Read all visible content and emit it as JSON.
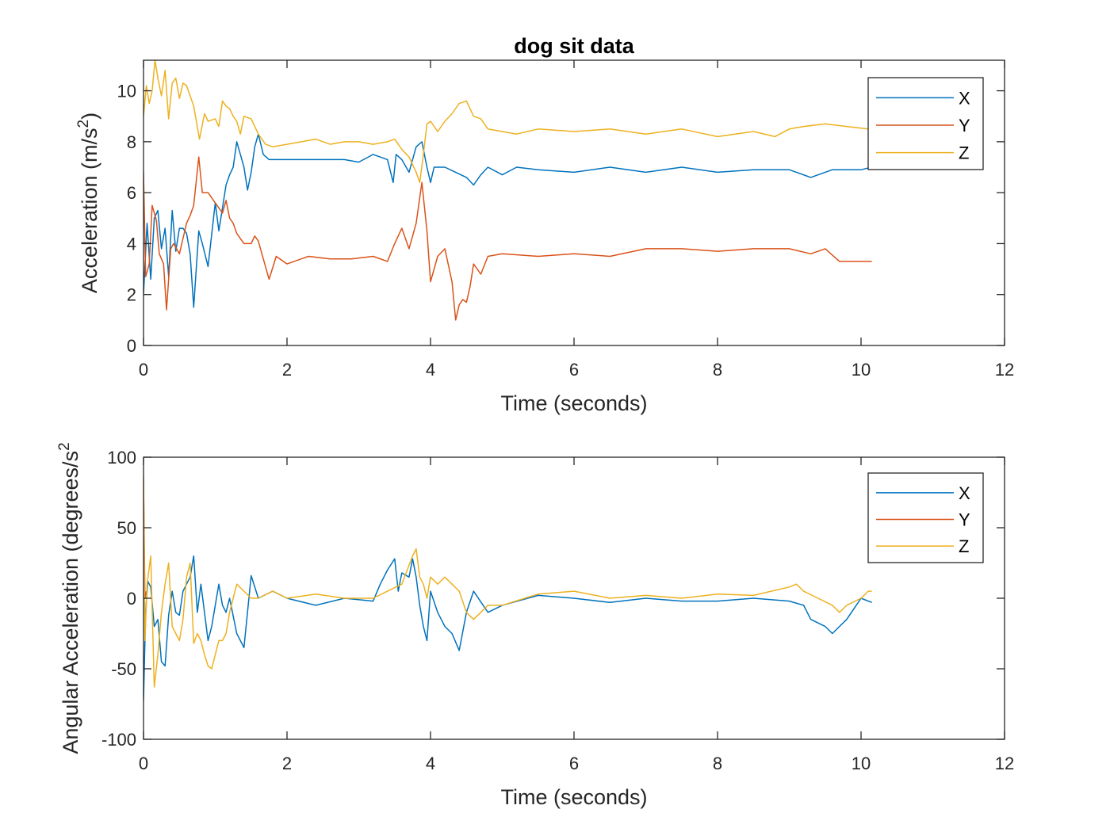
{
  "colors": {
    "X": "#0072BD",
    "Y": "#D95319",
    "Z": "#EDB120",
    "axis": "#262626"
  },
  "chart_data": [
    {
      "type": "line",
      "title": "dog sit data",
      "xlabel": "Time (seconds)",
      "ylabel": "Acceleration (m/s",
      "ylabel_sup": "2",
      "ylabel_close": ")",
      "xlim": [
        0,
        12
      ],
      "ylim": [
        0,
        11.2
      ],
      "xticks": [
        0,
        2,
        4,
        6,
        8,
        10,
        12
      ],
      "yticks": [
        0,
        2,
        4,
        6,
        8,
        10
      ],
      "grid": false,
      "legend": "top-right",
      "series": [
        {
          "name": "X",
          "x": [
            0,
            0.05,
            0.1,
            0.15,
            0.2,
            0.25,
            0.3,
            0.35,
            0.4,
            0.45,
            0.5,
            0.55,
            0.6,
            0.65,
            0.7,
            0.77,
            0.82,
            0.9,
            1.0,
            1.05,
            1.1,
            1.15,
            1.2,
            1.25,
            1.3,
            1.35,
            1.4,
            1.45,
            1.5,
            1.55,
            1.6,
            1.67,
            1.75,
            1.85,
            2.0,
            2.2,
            2.4,
            2.6,
            2.8,
            3.0,
            3.2,
            3.4,
            3.48,
            3.52,
            3.6,
            3.7,
            3.8,
            3.88,
            3.95,
            4.0,
            4.05,
            4.2,
            4.35,
            4.5,
            4.6,
            4.7,
            4.8,
            5.0,
            5.2,
            5.5,
            6.0,
            6.5,
            7.0,
            7.5,
            8.0,
            8.5,
            9.0,
            9.3,
            9.6,
            10.0,
            10.15
          ],
          "y": [
            2.0,
            4.8,
            2.6,
            5.0,
            5.3,
            3.8,
            4.6,
            2.7,
            5.3,
            3.7,
            4.6,
            4.6,
            4.4,
            3.6,
            1.5,
            4.5,
            4.0,
            3.1,
            5.6,
            4.5,
            5.4,
            6.3,
            6.7,
            7.0,
            8.0,
            7.5,
            7.0,
            6.1,
            6.8,
            7.8,
            8.3,
            7.5,
            7.3,
            7.3,
            7.3,
            7.3,
            7.3,
            7.3,
            7.3,
            7.2,
            7.5,
            7.3,
            6.4,
            7.5,
            7.3,
            6.8,
            7.8,
            8.0,
            7.0,
            6.4,
            7.0,
            7.0,
            6.8,
            6.6,
            6.3,
            6.7,
            7.0,
            6.7,
            7.0,
            6.9,
            6.8,
            7.0,
            6.8,
            7.0,
            6.8,
            6.9,
            6.9,
            6.6,
            6.9,
            6.9,
            7.0
          ]
        },
        {
          "name": "Y",
          "x": [
            0,
            0.03,
            0.08,
            0.12,
            0.18,
            0.22,
            0.28,
            0.32,
            0.38,
            0.42,
            0.5,
            0.55,
            0.6,
            0.65,
            0.7,
            0.77,
            0.82,
            0.9,
            1.0,
            1.05,
            1.1,
            1.15,
            1.2,
            1.25,
            1.3,
            1.4,
            1.5,
            1.55,
            1.6,
            1.67,
            1.75,
            1.85,
            2.0,
            2.3,
            2.6,
            2.9,
            3.2,
            3.4,
            3.5,
            3.6,
            3.7,
            3.8,
            3.88,
            3.95,
            4.0,
            4.1,
            4.2,
            4.3,
            4.35,
            4.4,
            4.45,
            4.5,
            4.55,
            4.6,
            4.7,
            4.8,
            5.0,
            5.5,
            6.0,
            6.5,
            7.0,
            7.5,
            8.0,
            8.5,
            9.0,
            9.3,
            9.5,
            9.7,
            10.0,
            10.15
          ],
          "y": [
            6.8,
            2.7,
            3.2,
            5.5,
            4.9,
            3.6,
            3.2,
            1.4,
            3.8,
            4.0,
            3.6,
            4.2,
            4.8,
            5.1,
            5.5,
            7.4,
            6.0,
            6.0,
            5.6,
            5.4,
            5.2,
            5.7,
            5.0,
            4.8,
            4.4,
            4.0,
            4.0,
            4.3,
            4.1,
            3.4,
            2.6,
            3.5,
            3.2,
            3.5,
            3.4,
            3.4,
            3.5,
            3.3,
            4.0,
            4.6,
            3.8,
            4.8,
            6.4,
            4.5,
            2.5,
            3.5,
            3.8,
            2.5,
            1.0,
            1.6,
            1.8,
            1.7,
            2.3,
            3.2,
            2.8,
            3.5,
            3.6,
            3.5,
            3.6,
            3.5,
            3.8,
            3.8,
            3.7,
            3.8,
            3.8,
            3.6,
            3.8,
            3.3,
            3.3,
            3.3
          ]
        },
        {
          "name": "Z",
          "x": [
            0,
            0.04,
            0.08,
            0.12,
            0.16,
            0.2,
            0.25,
            0.3,
            0.35,
            0.4,
            0.45,
            0.5,
            0.55,
            0.6,
            0.7,
            0.78,
            0.85,
            0.9,
            1.0,
            1.05,
            1.1,
            1.15,
            1.2,
            1.25,
            1.3,
            1.35,
            1.4,
            1.5,
            1.6,
            1.7,
            1.8,
            2.0,
            2.2,
            2.4,
            2.6,
            2.8,
            3.0,
            3.2,
            3.4,
            3.5,
            3.6,
            3.7,
            3.8,
            3.85,
            3.9,
            3.95,
            4.0,
            4.1,
            4.2,
            4.3,
            4.4,
            4.5,
            4.6,
            4.7,
            4.8,
            5.0,
            5.2,
            5.5,
            6.0,
            6.5,
            7.0,
            7.5,
            8.0,
            8.5,
            8.8,
            9.0,
            9.2,
            9.5,
            9.8,
            10.1
          ],
          "y": [
            9.0,
            10.2,
            9.5,
            10.0,
            11.2,
            10.5,
            9.8,
            10.8,
            8.9,
            10.3,
            10.5,
            9.7,
            10.3,
            10.2,
            9.4,
            8.1,
            9.1,
            8.8,
            8.9,
            8.6,
            9.6,
            9.4,
            9.3,
            9.0,
            8.8,
            8.3,
            9.0,
            8.9,
            8.3,
            7.9,
            7.8,
            7.9,
            8.0,
            8.1,
            7.9,
            8.0,
            8.0,
            7.9,
            8.0,
            8.1,
            7.7,
            7.4,
            6.8,
            6.4,
            7.5,
            8.7,
            8.8,
            8.4,
            8.8,
            9.1,
            9.5,
            9.6,
            9.0,
            8.9,
            8.5,
            8.4,
            8.3,
            8.5,
            8.4,
            8.5,
            8.3,
            8.5,
            8.2,
            8.4,
            8.2,
            8.5,
            8.6,
            8.7,
            8.6,
            8.5
          ]
        }
      ]
    },
    {
      "type": "line",
      "xlabel": "Time (seconds)",
      "ylabel": "Angular Acceleration (degrees/s",
      "ylabel_sup": "2",
      "xlim": [
        0,
        12
      ],
      "ylim": [
        -100,
        100
      ],
      "xticks": [
        0,
        2,
        4,
        6,
        8,
        10,
        12
      ],
      "yticks": [
        -100,
        -50,
        0,
        50,
        100
      ],
      "grid": false,
      "legend": "top-right",
      "series": [
        {
          "name": "X",
          "x": [
            0,
            0.03,
            0.06,
            0.1,
            0.15,
            0.2,
            0.25,
            0.3,
            0.35,
            0.4,
            0.45,
            0.5,
            0.55,
            0.6,
            0.65,
            0.7,
            0.75,
            0.8,
            0.85,
            0.9,
            0.95,
            1.0,
            1.05,
            1.1,
            1.15,
            1.2,
            1.3,
            1.4,
            1.5,
            1.6,
            1.8,
            2.0,
            2.4,
            2.8,
            3.2,
            3.3,
            3.4,
            3.5,
            3.55,
            3.6,
            3.7,
            3.75,
            3.8,
            3.85,
            3.9,
            3.95,
            4.0,
            4.1,
            4.2,
            4.3,
            4.4,
            4.5,
            4.6,
            4.8,
            5.0,
            5.5,
            6.0,
            6.5,
            7.0,
            7.5,
            8.0,
            8.5,
            9.0,
            9.2,
            9.3,
            9.5,
            9.6,
            9.7,
            9.8,
            10.0,
            10.15
          ],
          "y": [
            -73,
            -10,
            12,
            8,
            -20,
            -15,
            -45,
            -48,
            -12,
            5,
            -10,
            -12,
            5,
            10,
            15,
            30,
            -10,
            10,
            -10,
            -30,
            -20,
            -5,
            10,
            -5,
            -10,
            0,
            -25,
            -35,
            16,
            0,
            5,
            0,
            -5,
            0,
            -2,
            10,
            20,
            28,
            5,
            18,
            15,
            28,
            15,
            -5,
            -20,
            -30,
            5,
            -10,
            -20,
            -25,
            -37,
            -10,
            5,
            -10,
            -5,
            2,
            0,
            -3,
            0,
            -2,
            -2,
            0,
            -2,
            -5,
            -15,
            -20,
            -25,
            -20,
            -15,
            0,
            -3
          ]
        },
        {
          "name": "Y",
          "x": [
            0,
            0.02,
            0.04
          ],
          "y": [
            85,
            0,
            5
          ]
        },
        {
          "name": "Z",
          "x": [
            0,
            0.02,
            0.05,
            0.1,
            0.15,
            0.2,
            0.25,
            0.3,
            0.35,
            0.4,
            0.45,
            0.5,
            0.55,
            0.6,
            0.65,
            0.7,
            0.75,
            0.8,
            0.85,
            0.9,
            0.95,
            1.0,
            1.05,
            1.1,
            1.15,
            1.2,
            1.3,
            1.4,
            1.5,
            1.6,
            1.8,
            2.0,
            2.4,
            2.8,
            3.2,
            3.4,
            3.6,
            3.75,
            3.8,
            3.85,
            3.9,
            3.95,
            4.0,
            4.1,
            4.2,
            4.3,
            4.4,
            4.5,
            4.6,
            4.7,
            4.8,
            5.0,
            5.5,
            6.0,
            6.5,
            7.0,
            7.5,
            8.0,
            8.5,
            9.0,
            9.1,
            9.2,
            9.4,
            9.6,
            9.7,
            9.8,
            10.0,
            10.1,
            10.15
          ],
          "y": [
            88,
            -30,
            10,
            30,
            -63,
            -40,
            -10,
            10,
            25,
            -20,
            -25,
            -30,
            -15,
            15,
            25,
            -32,
            -25,
            -30,
            -40,
            -48,
            -50,
            -40,
            -30,
            -30,
            -25,
            -10,
            10,
            5,
            0,
            0,
            5,
            0,
            3,
            0,
            0,
            5,
            10,
            30,
            35,
            15,
            10,
            0,
            15,
            10,
            15,
            10,
            5,
            -10,
            -15,
            -10,
            -5,
            -5,
            3,
            5,
            0,
            2,
            0,
            3,
            2,
            8,
            10,
            5,
            0,
            -5,
            -10,
            -5,
            0,
            5,
            5
          ]
        }
      ]
    }
  ]
}
